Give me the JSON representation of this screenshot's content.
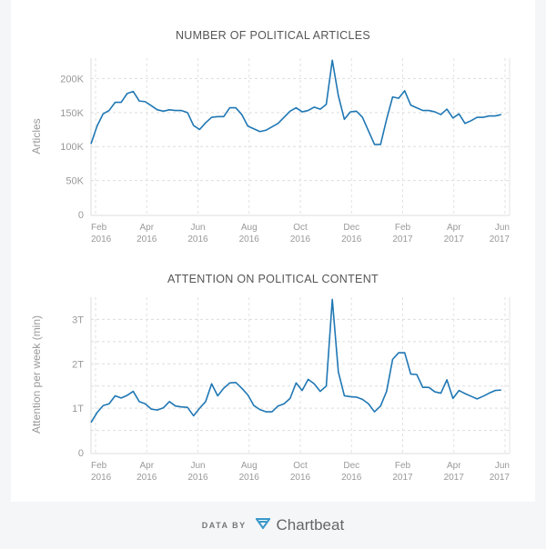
{
  "chart_data": [
    {
      "type": "line",
      "title": "NUMBER OF POLITICAL ARTICLES",
      "ylabel": "Articles",
      "xlabel": "",
      "ylim": [
        0,
        230000
      ],
      "yticks": [
        0,
        50000,
        100000,
        150000,
        200000
      ],
      "ytick_labels": [
        "0",
        "50K",
        "100K",
        "150K",
        "200K"
      ],
      "xticks": [
        [
          "Feb",
          "2016"
        ],
        [
          "Apr",
          "2016"
        ],
        [
          "Jun",
          "2016"
        ],
        [
          "Aug",
          "2016"
        ],
        [
          "Oct",
          "2016"
        ],
        [
          "Dec",
          "2016"
        ],
        [
          "Feb",
          "2017"
        ],
        [
          "Apr",
          "2017"
        ],
        [
          "Jun",
          "2017"
        ]
      ],
      "x_range_months": [
        0,
        16
      ],
      "x_start": "Feb 2016",
      "x_frequency": "weekly",
      "color": "#1f77b4",
      "values": [
        104,
        130,
        148,
        153,
        165,
        165,
        178,
        181,
        167,
        166,
        160,
        154,
        152,
        154,
        153,
        153,
        150,
        131,
        125,
        135,
        143,
        144,
        144,
        157,
        157,
        147,
        130,
        126,
        122,
        124,
        129,
        134,
        143,
        152,
        157,
        151,
        153,
        158,
        155,
        162,
        227,
        175,
        140,
        151,
        152,
        143,
        123,
        103,
        103,
        140,
        173,
        171,
        182,
        161,
        157,
        153,
        153,
        151,
        147,
        155,
        142,
        148,
        134,
        138,
        143,
        143,
        145,
        145,
        147
      ],
      "value_unit": "thousand"
    },
    {
      "type": "line",
      "title": "ATTENTION ON POLITICAL CONTENT",
      "ylabel": "Attention per week (min)",
      "xlabel": "",
      "ylim": [
        0,
        3.5
      ],
      "yticks": [
        0,
        1,
        2,
        3
      ],
      "ytick_labels": [
        "0",
        "1T",
        "2T",
        "3T"
      ],
      "xticks": [
        [
          "Feb",
          "2016"
        ],
        [
          "Apr",
          "2016"
        ],
        [
          "Jun",
          "2016"
        ],
        [
          "Aug",
          "2016"
        ],
        [
          "Oct",
          "2016"
        ],
        [
          "Dec",
          "2016"
        ],
        [
          "Feb",
          "2017"
        ],
        [
          "Apr",
          "2017"
        ],
        [
          "Jun",
          "2017"
        ]
      ],
      "x_range_months": [
        0,
        16
      ],
      "x_start": "Feb 2016",
      "x_frequency": "weekly",
      "color": "#1f77b4",
      "values": [
        0.68,
        0.9,
        1.06,
        1.1,
        1.28,
        1.23,
        1.29,
        1.38,
        1.15,
        1.1,
        0.98,
        0.96,
        1.01,
        1.15,
        1.05,
        1.03,
        1.02,
        0.83,
        1.0,
        1.15,
        1.55,
        1.28,
        1.45,
        1.57,
        1.58,
        1.45,
        1.3,
        1.06,
        0.97,
        0.92,
        0.92,
        1.05,
        1.1,
        1.22,
        1.57,
        1.4,
        1.65,
        1.55,
        1.38,
        1.5,
        3.45,
        1.82,
        1.28,
        1.26,
        1.25,
        1.2,
        1.1,
        0.92,
        1.05,
        1.38,
        2.1,
        2.25,
        2.25,
        1.77,
        1.76,
        1.47,
        1.47,
        1.37,
        1.34,
        1.64,
        1.22,
        1.4,
        1.33,
        1.27,
        1.21,
        1.27,
        1.34,
        1.4,
        1.41
      ],
      "value_unit": "trillion"
    }
  ],
  "footer": {
    "data_by": "DATA BY",
    "brand": "Chartbeat"
  }
}
